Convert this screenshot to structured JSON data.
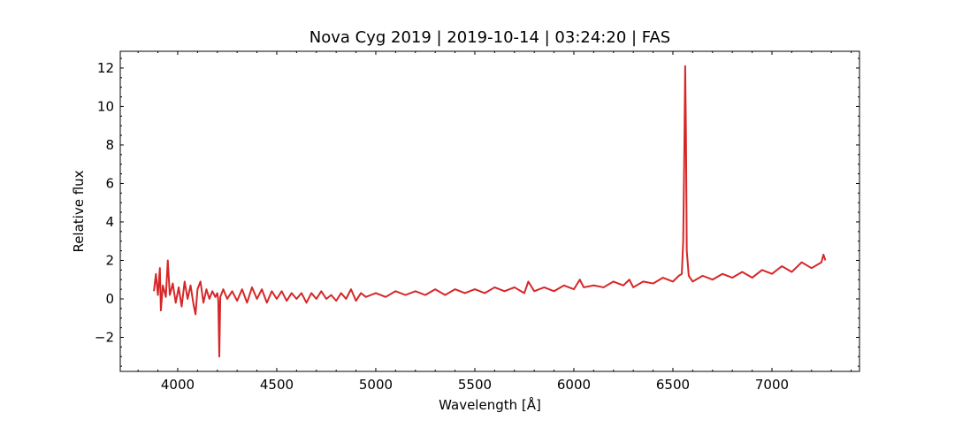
{
  "chart_data": {
    "type": "line",
    "title": "Nova Cyg 2019 | 2019-10-14 | 03:24:20 | FAS",
    "xlabel": "Wavelength [Å]",
    "ylabel": "Relative flux",
    "color": "#d62728",
    "x": [
      3880,
      3890,
      3900,
      3910,
      3915,
      3925,
      3940,
      3950,
      3960,
      3975,
      3990,
      4005,
      4020,
      4035,
      4050,
      4065,
      4080,
      4090,
      4100,
      4115,
      4130,
      4145,
      4160,
      4175,
      4190,
      4200,
      4205,
      4210,
      4215,
      4230,
      4250,
      4275,
      4300,
      4325,
      4350,
      4375,
      4400,
      4425,
      4450,
      4475,
      4500,
      4525,
      4550,
      4575,
      4600,
      4625,
      4650,
      4675,
      4700,
      4725,
      4750,
      4775,
      4800,
      4825,
      4850,
      4875,
      4900,
      4925,
      4950,
      4975,
      5000,
      5050,
      5100,
      5150,
      5200,
      5250,
      5300,
      5350,
      5400,
      5450,
      5500,
      5550,
      5600,
      5650,
      5700,
      5750,
      5770,
      5800,
      5850,
      5900,
      5950,
      6000,
      6030,
      6050,
      6100,
      6150,
      6200,
      6250,
      6280,
      6300,
      6350,
      6400,
      6450,
      6500,
      6530,
      6545,
      6552,
      6558,
      6562,
      6566,
      6570,
      6580,
      6600,
      6650,
      6700,
      6750,
      6800,
      6850,
      6900,
      6950,
      7000,
      7050,
      7100,
      7150,
      7200,
      7250,
      7260,
      7270
    ],
    "values": [
      0.4,
      1.3,
      0.2,
      1.6,
      -0.6,
      0.7,
      0.1,
      2.0,
      0.2,
      0.8,
      -0.2,
      0.6,
      -0.4,
      0.9,
      0.0,
      0.7,
      -0.3,
      -0.8,
      0.5,
      0.9,
      -0.2,
      0.5,
      0.0,
      0.4,
      0.1,
      0.3,
      -0.1,
      -3.0,
      0.1,
      0.5,
      0.0,
      0.4,
      -0.1,
      0.5,
      -0.2,
      0.6,
      0.0,
      0.5,
      -0.2,
      0.4,
      0.0,
      0.4,
      -0.1,
      0.3,
      0.0,
      0.3,
      -0.2,
      0.3,
      0.0,
      0.4,
      0.0,
      0.2,
      -0.1,
      0.3,
      0.0,
      0.5,
      -0.1,
      0.3,
      0.1,
      0.2,
      0.3,
      0.1,
      0.4,
      0.2,
      0.4,
      0.2,
      0.5,
      0.2,
      0.5,
      0.3,
      0.5,
      0.3,
      0.6,
      0.4,
      0.6,
      0.3,
      0.9,
      0.4,
      0.6,
      0.4,
      0.7,
      0.5,
      1.0,
      0.6,
      0.7,
      0.6,
      0.9,
      0.7,
      1.0,
      0.6,
      0.9,
      0.8,
      1.1,
      0.9,
      1.2,
      1.3,
      3.0,
      8.0,
      12.1,
      8.5,
      2.5,
      1.2,
      0.9,
      1.2,
      1.0,
      1.3,
      1.1,
      1.4,
      1.1,
      1.5,
      1.3,
      1.7,
      1.4,
      1.9,
      1.6,
      1.9,
      2.3,
      2.0
    ],
    "xlim": [
      3710,
      7442
    ],
    "ylim": [
      -3.77,
      12.87
    ],
    "xticks": [
      4000,
      4500,
      5000,
      5500,
      6000,
      6500,
      7000
    ],
    "yticks": [
      {
        "value": -2,
        "label": "−2"
      },
      0,
      2,
      4,
      6,
      8,
      10,
      12
    ],
    "xminorticks": [
      3800,
      3900,
      4100,
      4200,
      4300,
      4400,
      4600,
      4700,
      4800,
      4900,
      5100,
      5200,
      5300,
      5400,
      5600,
      5700,
      5800,
      5900,
      6100,
      6200,
      6300,
      6400,
      6600,
      6700,
      6800,
      6900,
      7100,
      7200,
      7300,
      7400
    ],
    "yminorticks": [
      -3.5,
      -3,
      -2.5,
      -1.5,
      -1,
      -0.5,
      0.5,
      1,
      1.5,
      2.5,
      3,
      3.5,
      4.5,
      5,
      5.5,
      6.5,
      7,
      7.5,
      8.5,
      9,
      9.5,
      10.5,
      11,
      11.5,
      12.5
    ]
  }
}
